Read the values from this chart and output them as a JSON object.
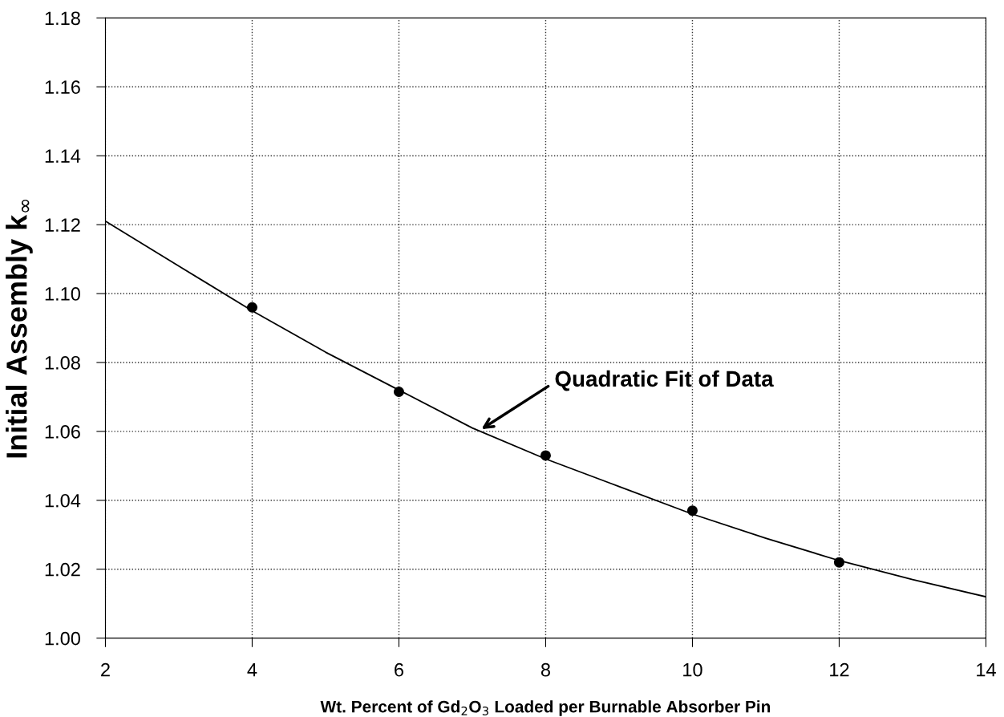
{
  "chart_data": {
    "type": "scatter",
    "xlabel": "Wt. Percent of Gd$_{2}$O$_{3}$ Loaded per Burnable Absorber Pin",
    "ylabel": "Initial Assembly k$_{∞}$",
    "x": [
      4,
      6,
      8,
      10,
      12
    ],
    "series": [
      {
        "color": "#000000",
        "marker": "circle",
        "values": [
          1.096,
          1.0715,
          1.053,
          1.037,
          1.022
        ]
      },
      {
        "type": "line",
        "color": "#000000",
        "marker": "none",
        "line_style": "solid",
        "x": [
          2,
          3,
          4,
          5,
          6,
          7,
          8,
          9,
          10,
          11,
          12,
          13,
          14
        ],
        "values": [
          1.121,
          1.108,
          1.095,
          1.083,
          1.072,
          1.061,
          1.052,
          1.044,
          1.036,
          1.029,
          1.0225,
          1.017,
          1.012
        ]
      }
    ],
    "annotations": [
      "Quadratic Fit of Data"
    ],
    "xlim": [
      2,
      14
    ],
    "xticks": [
      2,
      4,
      6,
      8,
      10,
      12,
      14
    ],
    "ylim": [
      1.0,
      1.18
    ],
    "yticks": [
      {
        "value": 1.0,
        "label": "1.00"
      },
      {
        "value": 1.02,
        "label": "1.02"
      },
      {
        "value": 1.04,
        "label": "1.04"
      },
      {
        "value": 1.06,
        "label": "1.06"
      },
      {
        "value": 1.08,
        "label": "1.08"
      },
      {
        "value": 1.1,
        "label": "1.10"
      },
      {
        "value": 1.12,
        "label": "1.12"
      },
      {
        "value": 1.14,
        "label": "1.14"
      },
      {
        "value": 1.16,
        "label": "1.16"
      },
      {
        "value": 1.18,
        "label": "1.18"
      }
    ],
    "grid": true,
    "legend": false
  }
}
